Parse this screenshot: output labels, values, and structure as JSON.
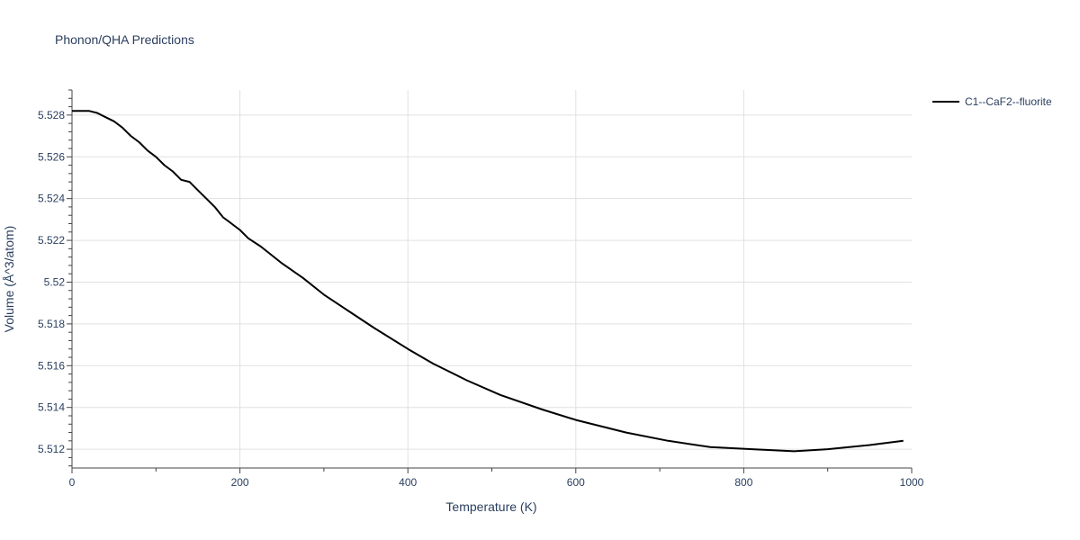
{
  "chart_data": {
    "type": "line",
    "title": "Phonon/QHA Predictions",
    "xlabel": "Temperature (K)",
    "ylabel": "Volume (Å^3/atom)",
    "xlim": [
      0,
      1000
    ],
    "ylim": [
      5.5111,
      5.5292
    ],
    "x_ticks": [
      0,
      200,
      400,
      600,
      800,
      1000
    ],
    "y_ticks": [
      5.512,
      5.514,
      5.516,
      5.518,
      5.52,
      5.522,
      5.524,
      5.526,
      5.528
    ],
    "y_tick_labels": [
      "5.512",
      "5.514",
      "5.516",
      "5.518",
      "5.52",
      "5.522",
      "5.524",
      "5.526",
      "5.528"
    ],
    "grid": true,
    "legend_position": "top-right-outside",
    "series": [
      {
        "name": "C1--CaF2--fluorite",
        "color": "#000000",
        "x": [
          0,
          10,
          20,
          30,
          40,
          50,
          60,
          70,
          80,
          90,
          100,
          110,
          120,
          130,
          140,
          150,
          160,
          170,
          180,
          190,
          200,
          210,
          225,
          250,
          275,
          300,
          330,
          360,
          400,
          430,
          470,
          510,
          560,
          600,
          660,
          710,
          760,
          810,
          860,
          900,
          950,
          990
        ],
        "y": [
          5.5282,
          5.5282,
          5.5282,
          5.5281,
          5.5279,
          5.5277,
          5.5274,
          5.527,
          5.5267,
          5.5263,
          5.526,
          5.5256,
          5.5253,
          5.5249,
          5.5248,
          5.5244,
          5.524,
          5.5236,
          5.5231,
          5.5228,
          5.5225,
          5.5221,
          5.5217,
          5.5209,
          5.5202,
          5.5194,
          5.5186,
          5.5178,
          5.5168,
          5.5161,
          5.5153,
          5.5146,
          5.5139,
          5.5134,
          5.5128,
          5.5124,
          5.5121,
          5.512,
          5.5119,
          5.512,
          5.5122,
          5.5124
        ]
      }
    ]
  }
}
